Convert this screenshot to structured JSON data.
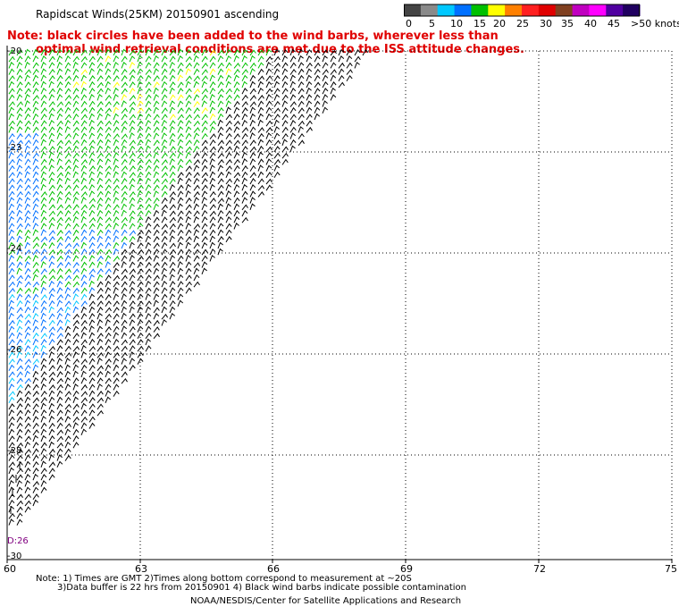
{
  "title": "Rapidscat Winds(25KM) 20150901 ascending",
  "note_line1": "Note: black circles have been added to the wind barbs, wherever less than",
  "note_line2": "optimal wind retrieval conditions are met due to the ISS attitude changes.",
  "colorbar": {
    "labels": [
      "0",
      "5",
      "10",
      "15",
      "20",
      "25",
      "30",
      "35",
      "40",
      "45",
      ">50 knots"
    ],
    "colors": [
      "#444444",
      "#8a8a8a",
      "#00c8ff",
      "#0070ff",
      "#00c000",
      "#ffff00",
      "#ff8000",
      "#ff2020",
      "#e00000",
      "#804020",
      "#c000c0",
      "#ff00ff",
      "#5000a0",
      "#200060"
    ]
  },
  "axes": {
    "y_labels": [
      "-20",
      "-23",
      "-24",
      "-26",
      "-28",
      "-30"
    ],
    "x_labels": [
      "60",
      "63",
      "66",
      "69",
      "72",
      "75"
    ]
  },
  "time_label": "D:26",
  "footer": {
    "line1": "Note: 1) Times are GMT 2)Times along bottom correspond to measurement at ~20S",
    "line2": "3)Data buffer is 22 hrs from 20150901 4) Black wind barbs indicate possible contamination",
    "line3": "NOAA/NESDIS/Center for Satellite Applications and Research"
  }
}
